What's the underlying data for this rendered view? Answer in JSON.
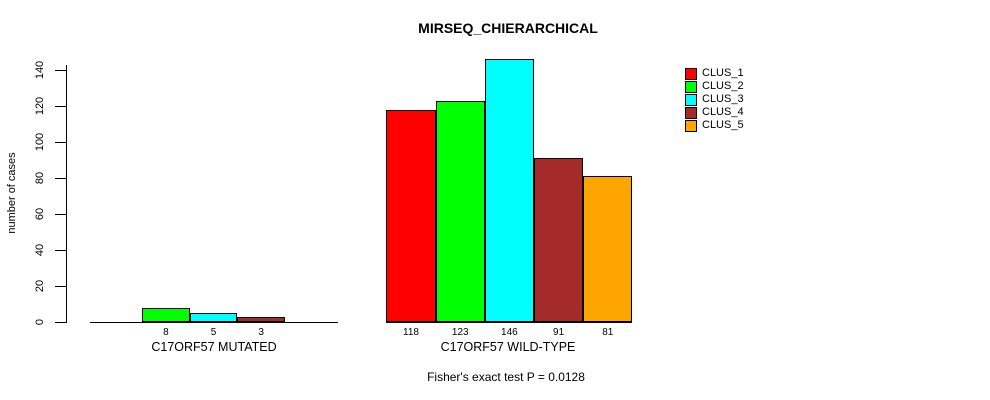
{
  "chart_data": {
    "type": "bar",
    "title": "MIRSEQ_CHIERARCHICAL",
    "ylabel": "number of cases",
    "ylim": [
      0,
      140
    ],
    "yticks": [
      0,
      20,
      40,
      60,
      80,
      100,
      120,
      140
    ],
    "grid": false,
    "legend_position": "top-right",
    "legend": [
      {
        "name": "CLUS_1",
        "color": "#ff0000"
      },
      {
        "name": "CLUS_2",
        "color": "#00ff00"
      },
      {
        "name": "CLUS_3",
        "color": "#00ffff"
      },
      {
        "name": "CLUS_4",
        "color": "#a52a2a"
      },
      {
        "name": "CLUS_5",
        "color": "#ffa500"
      }
    ],
    "groups": [
      {
        "label": "C17ORF57 MUTATED",
        "bars": [
          {
            "series": "CLUS_2",
            "value": 8
          },
          {
            "series": "CLUS_3",
            "value": 5
          },
          {
            "series": "CLUS_4",
            "value": 3
          }
        ]
      },
      {
        "label": "C17ORF57 WILD-TYPE",
        "bars": [
          {
            "series": "CLUS_1",
            "value": 118
          },
          {
            "series": "CLUS_2",
            "value": 123
          },
          {
            "series": "CLUS_3",
            "value": 146
          },
          {
            "series": "CLUS_4",
            "value": 91
          },
          {
            "series": "CLUS_5",
            "value": 81
          }
        ]
      }
    ],
    "annotation": "Fisher's exact test P = 0.0128"
  }
}
